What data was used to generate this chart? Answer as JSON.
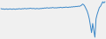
{
  "line_color": "#3a87c8",
  "linewidth": 0.7,
  "background_color": "#f0f0f0",
  "figsize": [
    1.2,
    0.45
  ],
  "dpi": 100,
  "values": [
    0.5,
    0.3,
    0.4,
    0.2,
    0.3,
    0.4,
    0.2,
    0.3,
    0.4,
    0.3,
    0.2,
    0.4,
    0.3,
    0.2,
    0.4,
    0.3,
    0.5,
    0.4,
    0.3,
    0.5,
    0.4,
    0.6,
    0.5,
    0.4,
    0.6,
    0.5,
    0.7,
    0.6,
    0.5,
    0.6,
    0.5,
    0.4,
    0.6,
    0.5,
    0.4,
    0.6,
    0.5,
    0.7,
    0.6,
    0.8,
    0.7,
    0.9,
    0.8,
    0.7,
    0.9,
    0.8,
    1.0,
    0.9,
    0.8,
    0.9,
    0.8,
    1.0,
    0.9,
    1.1,
    1.0,
    0.9,
    1.1,
    1.0,
    1.2,
    1.1,
    1.0,
    1.2,
    1.1,
    1.3,
    1.2,
    1.4,
    1.3,
    1.5,
    1.4,
    1.6,
    1.5,
    1.7,
    2.0,
    2.5,
    2.2,
    1.5,
    0.5,
    -0.5,
    -2.0,
    -4.0,
    -7.0,
    -10.0,
    -6.0,
    -9.0,
    -12.0,
    -4.0,
    -2.0,
    -0.5,
    1.0,
    1.5,
    2.5,
    3.5,
    3.0,
    3.5
  ]
}
